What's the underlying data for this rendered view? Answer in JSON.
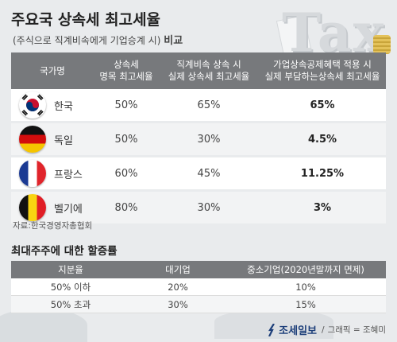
{
  "title": "주요국 상속세 최고세율",
  "subtitle": {
    "paren": "(주식으로 직계비속에게 기업승계 시)",
    "compare": "비교"
  },
  "background_word": "Tax",
  "table1": {
    "headers": {
      "country": "국가명",
      "nominal_1": "상속세",
      "nominal_2": "명목 최고세율",
      "real_1": "직계비속 상속 시",
      "real_2": "실제 상속세 최고세율",
      "sme_1": "가업상속공제혜택 적용 시",
      "sme_2": "실제 부담하는상속세 최고세율"
    },
    "rows": [
      {
        "country": "한국",
        "flag": "korea-flag-icon",
        "nominal": "50%",
        "real": "65%",
        "sme": "65%"
      },
      {
        "country": "독일",
        "flag": "germany-flag-icon",
        "nominal": "50%",
        "real": "30%",
        "sme": "4.5%"
      },
      {
        "country": "프랑스",
        "flag": "france-flag-icon",
        "nominal": "60%",
        "real": "45%",
        "sme": "11.25%"
      },
      {
        "country": "벨기에",
        "flag": "belgium-flag-icon",
        "nominal": "80%",
        "real": "30%",
        "sme": "3%"
      }
    ]
  },
  "source": "자료:한국경영자총협회",
  "section2_title": "최대주주에 대한 할증률",
  "table2": {
    "headers": {
      "share": "지분율",
      "large": "대기업",
      "sme": "중소기업(2020년말까지 면제)"
    },
    "rows": [
      {
        "share": "50% 이하",
        "large": "20%",
        "sme": "10%"
      },
      {
        "share": "50% 초과",
        "large": "30%",
        "sme": "15%"
      }
    ]
  },
  "footer": {
    "logo": "조세일보",
    "separator": "/",
    "credit": "그래픽 = 조혜미"
  },
  "colors": {
    "header_bg": "#77797c",
    "page_bg": "#e9ebed",
    "logo_blue": "#1d3f7a"
  }
}
